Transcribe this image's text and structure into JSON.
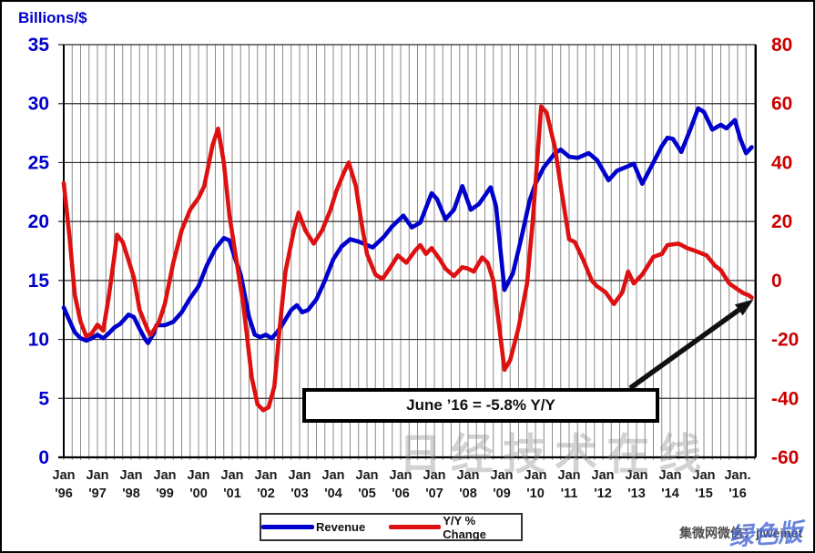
{
  "accent_colors": {
    "revenue_blue": "#0000cc",
    "yoy_red": "#dd1111",
    "right_axis_red": "#cc0000",
    "left_axis_blue": "#0000cc"
  },
  "legend": {
    "items": [
      {
        "label": "Revenue",
        "color": "#0000cc"
      },
      {
        "label": "Y/Y % Change",
        "color": "#dd1111"
      }
    ]
  },
  "annotation": {
    "text": "June ’16 = -5.8% Y/Y"
  },
  "watermarks": {
    "center": "日经技术在线",
    "footer": "集微网微信：jiweinet",
    "overlay": "绿色版"
  },
  "chart_data": {
    "type": "line",
    "title": "",
    "left_axis": {
      "label": "Billions/$",
      "ticks": [
        35,
        30,
        25,
        20,
        15,
        10,
        5,
        0
      ],
      "range": [
        0,
        35
      ],
      "color": "#0000cc"
    },
    "right_axis": {
      "ticks": [
        80,
        60,
        40,
        20,
        0,
        -20,
        -40,
        -60
      ],
      "range": [
        -60,
        80
      ],
      "color": "#cc0000"
    },
    "x_axis": {
      "start_year": 1996,
      "end_year": 2016.54,
      "gridlines": "quarterly",
      "labels": [
        {
          "line1": "Jan",
          "line2": "'96"
        },
        {
          "line1": "Jan",
          "line2": "'97"
        },
        {
          "line1": "Jan",
          "line2": "'98"
        },
        {
          "line1": "Jan",
          "line2": "'99"
        },
        {
          "line1": "Jan",
          "line2": "'00"
        },
        {
          "line1": "Jan",
          "line2": "'01"
        },
        {
          "line1": "Jan",
          "line2": "'02"
        },
        {
          "line1": "Jan",
          "line2": "'03"
        },
        {
          "line1": "Jan",
          "line2": "'04"
        },
        {
          "line1": "Jan",
          "line2": "'05"
        },
        {
          "line1": "Jan",
          "line2": "'06"
        },
        {
          "line1": "Jan",
          "line2": "'07"
        },
        {
          "line1": "Jan",
          "line2": "'08"
        },
        {
          "line1": "Jan",
          "line2": "'09"
        },
        {
          "line1": "Jan",
          "line2": "'10"
        },
        {
          "line1": "Jan",
          "line2": "'11"
        },
        {
          "line1": "Jan",
          "line2": "'12"
        },
        {
          "line1": "Jan",
          "line2": "'13"
        },
        {
          "line1": "Jan",
          "line2": "'14"
        },
        {
          "line1": "Jan",
          "line2": "'15"
        },
        {
          "line1": "Jan.",
          "line2": "'16"
        }
      ]
    },
    "legend_position": "bottom-center",
    "grid": true,
    "annotation": {
      "text": "June ’16 = -5.8% Y/Y",
      "points_to": {
        "x": 2016.42,
        "value": -5.8,
        "axis": "right"
      }
    },
    "series": [
      {
        "name": "Revenue",
        "axis": "left",
        "units": "billions US$ (monthly, est.)",
        "color": "#0000cc",
        "points": [
          [
            1996.0,
            12.7
          ],
          [
            1996.17,
            11.6
          ],
          [
            1996.33,
            10.6
          ],
          [
            1996.5,
            10.1
          ],
          [
            1996.67,
            9.9
          ],
          [
            1996.83,
            10.1
          ],
          [
            1997.0,
            10.4
          ],
          [
            1997.17,
            10.1
          ],
          [
            1997.33,
            10.5
          ],
          [
            1997.5,
            11.0
          ],
          [
            1997.67,
            11.3
          ],
          [
            1997.83,
            11.8
          ],
          [
            1997.92,
            12.1
          ],
          [
            1998.08,
            11.9
          ],
          [
            1998.25,
            10.9
          ],
          [
            1998.42,
            10.0
          ],
          [
            1998.5,
            9.7
          ],
          [
            1998.67,
            10.5
          ],
          [
            1998.75,
            11.2
          ],
          [
            1999.0,
            11.2
          ],
          [
            1999.25,
            11.5
          ],
          [
            1999.5,
            12.3
          ],
          [
            1999.75,
            13.5
          ],
          [
            2000.0,
            14.5
          ],
          [
            2000.25,
            16.3
          ],
          [
            2000.5,
            17.7
          ],
          [
            2000.75,
            18.6
          ],
          [
            2000.92,
            18.4
          ],
          [
            2001.08,
            16.9
          ],
          [
            2001.25,
            15.5
          ],
          [
            2001.5,
            11.9
          ],
          [
            2001.67,
            10.4
          ],
          [
            2001.83,
            10.2
          ],
          [
            2002.0,
            10.4
          ],
          [
            2002.17,
            10.1
          ],
          [
            2002.33,
            10.6
          ],
          [
            2002.5,
            11.3
          ],
          [
            2002.75,
            12.5
          ],
          [
            2002.92,
            12.9
          ],
          [
            2003.08,
            12.3
          ],
          [
            2003.25,
            12.5
          ],
          [
            2003.5,
            13.4
          ],
          [
            2003.75,
            15.0
          ],
          [
            2004.0,
            16.8
          ],
          [
            2004.25,
            17.9
          ],
          [
            2004.5,
            18.5
          ],
          [
            2004.75,
            18.3
          ],
          [
            2005.0,
            18.0
          ],
          [
            2005.17,
            17.8
          ],
          [
            2005.5,
            18.7
          ],
          [
            2005.75,
            19.6
          ],
          [
            2006.08,
            20.5
          ],
          [
            2006.33,
            19.5
          ],
          [
            2006.58,
            19.9
          ],
          [
            2006.92,
            22.4
          ],
          [
            2007.08,
            21.9
          ],
          [
            2007.33,
            20.2
          ],
          [
            2007.58,
            21.0
          ],
          [
            2007.83,
            23.0
          ],
          [
            2008.08,
            21.0
          ],
          [
            2008.33,
            21.5
          ],
          [
            2008.67,
            22.9
          ],
          [
            2008.83,
            21.3
          ],
          [
            2009.08,
            14.2
          ],
          [
            2009.33,
            15.6
          ],
          [
            2009.58,
            18.6
          ],
          [
            2009.83,
            21.8
          ],
          [
            2010.0,
            23.2
          ],
          [
            2010.25,
            24.6
          ],
          [
            2010.58,
            25.8
          ],
          [
            2010.75,
            26.1
          ],
          [
            2011.0,
            25.5
          ],
          [
            2011.25,
            25.4
          ],
          [
            2011.58,
            25.8
          ],
          [
            2011.83,
            25.2
          ],
          [
            2012.17,
            23.5
          ],
          [
            2012.42,
            24.3
          ],
          [
            2012.67,
            24.6
          ],
          [
            2012.92,
            24.9
          ],
          [
            2013.17,
            23.2
          ],
          [
            2013.5,
            25.0
          ],
          [
            2013.75,
            26.4
          ],
          [
            2013.92,
            27.1
          ],
          [
            2014.08,
            27.0
          ],
          [
            2014.33,
            25.9
          ],
          [
            2014.58,
            27.7
          ],
          [
            2014.83,
            29.6
          ],
          [
            2015.0,
            29.3
          ],
          [
            2015.25,
            27.8
          ],
          [
            2015.5,
            28.2
          ],
          [
            2015.67,
            27.9
          ],
          [
            2015.92,
            28.6
          ],
          [
            2016.08,
            27.0
          ],
          [
            2016.25,
            25.8
          ],
          [
            2016.42,
            26.3
          ]
        ]
      },
      {
        "name": "Y/Y % Change",
        "axis": "right",
        "units": "percent",
        "color": "#dd1111",
        "points": [
          [
            1996.0,
            33
          ],
          [
            1996.17,
            15
          ],
          [
            1996.33,
            -5
          ],
          [
            1996.5,
            -14
          ],
          [
            1996.67,
            -19
          ],
          [
            1996.83,
            -18
          ],
          [
            1997.0,
            -15
          ],
          [
            1997.17,
            -17
          ],
          [
            1997.33,
            -6
          ],
          [
            1997.5,
            8
          ],
          [
            1997.58,
            15.5
          ],
          [
            1997.75,
            13
          ],
          [
            1997.92,
            7
          ],
          [
            1998.08,
            1
          ],
          [
            1998.25,
            -10
          ],
          [
            1998.5,
            -17
          ],
          [
            1998.58,
            -18.5
          ],
          [
            1998.83,
            -14
          ],
          [
            1999.0,
            -8
          ],
          [
            1999.25,
            6
          ],
          [
            1999.5,
            17
          ],
          [
            1999.75,
            24
          ],
          [
            2000.0,
            28
          ],
          [
            2000.17,
            32
          ],
          [
            2000.42,
            46
          ],
          [
            2000.58,
            51.5
          ],
          [
            2000.75,
            40
          ],
          [
            2000.92,
            22
          ],
          [
            2001.08,
            10
          ],
          [
            2001.33,
            -8
          ],
          [
            2001.58,
            -33
          ],
          [
            2001.75,
            -42
          ],
          [
            2001.92,
            -44
          ],
          [
            2002.08,
            -43
          ],
          [
            2002.25,
            -36
          ],
          [
            2002.42,
            -15
          ],
          [
            2002.58,
            3
          ],
          [
            2002.83,
            17
          ],
          [
            2002.97,
            23
          ],
          [
            2003.17,
            17
          ],
          [
            2003.42,
            12.5
          ],
          [
            2003.67,
            17
          ],
          [
            2003.92,
            24
          ],
          [
            2004.08,
            30
          ],
          [
            2004.33,
            37
          ],
          [
            2004.46,
            40
          ],
          [
            2004.67,
            32
          ],
          [
            2004.83,
            20
          ],
          [
            2005.0,
            9
          ],
          [
            2005.25,
            2
          ],
          [
            2005.46,
            0.5
          ],
          [
            2005.67,
            4
          ],
          [
            2005.92,
            8.5
          ],
          [
            2006.17,
            6
          ],
          [
            2006.42,
            10
          ],
          [
            2006.58,
            12
          ],
          [
            2006.75,
            9
          ],
          [
            2006.92,
            11
          ],
          [
            2007.17,
            7
          ],
          [
            2007.33,
            4
          ],
          [
            2007.58,
            1.5
          ],
          [
            2007.83,
            4.5
          ],
          [
            2008.0,
            4
          ],
          [
            2008.17,
            3
          ],
          [
            2008.42,
            7.8
          ],
          [
            2008.58,
            6
          ],
          [
            2008.75,
            0
          ],
          [
            2008.92,
            -15
          ],
          [
            2009.08,
            -30.3
          ],
          [
            2009.25,
            -27
          ],
          [
            2009.5,
            -16
          ],
          [
            2009.75,
            -1
          ],
          [
            2009.92,
            20
          ],
          [
            2010.17,
            59
          ],
          [
            2010.33,
            57
          ],
          [
            2010.58,
            45
          ],
          [
            2010.75,
            32
          ],
          [
            2011.0,
            14
          ],
          [
            2011.17,
            13
          ],
          [
            2011.42,
            7
          ],
          [
            2011.67,
            0
          ],
          [
            2011.83,
            -2
          ],
          [
            2012.08,
            -4
          ],
          [
            2012.33,
            -8
          ],
          [
            2012.58,
            -4
          ],
          [
            2012.75,
            3
          ],
          [
            2012.92,
            -1
          ],
          [
            2013.17,
            2
          ],
          [
            2013.5,
            8
          ],
          [
            2013.75,
            9
          ],
          [
            2013.92,
            12
          ],
          [
            2014.25,
            12.5
          ],
          [
            2014.5,
            11
          ],
          [
            2014.75,
            10
          ],
          [
            2015.08,
            8.5
          ],
          [
            2015.33,
            5
          ],
          [
            2015.5,
            3.5
          ],
          [
            2015.75,
            -1
          ],
          [
            2016.0,
            -3
          ],
          [
            2016.17,
            -4.3
          ],
          [
            2016.33,
            -5
          ],
          [
            2016.42,
            -5.8
          ]
        ]
      }
    ]
  }
}
